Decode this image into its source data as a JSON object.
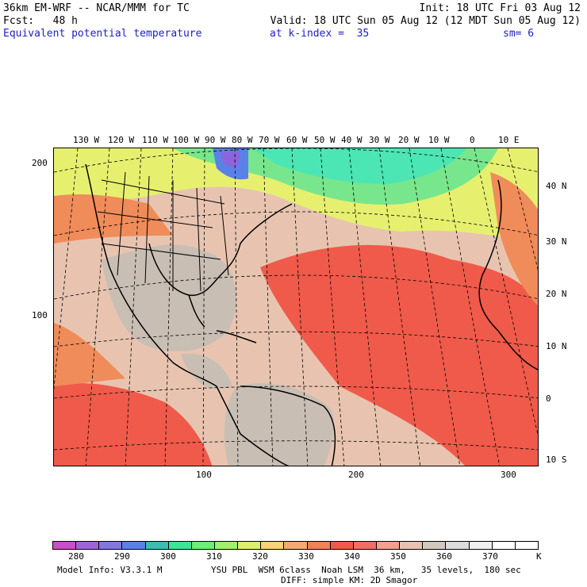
{
  "header": {
    "line1_left": "36km EM-WRF -- NCAR/MMM for TC",
    "line1_right": "Init: 18 UTC Fri 03 Aug 12",
    "line2_left": "Fcst:   48 h",
    "line2_right": "Valid: 18 UTC Sun 05 Aug 12 (12 MDT Sun 05 Aug 12)",
    "field_name": "Equivalent potential temperature",
    "level": "at k-index =  35",
    "smoothing": "sm= 6"
  },
  "map": {
    "top_lon_labels": [
      "130 W",
      "120 W",
      "110 W",
      "100 W",
      "90 W",
      "80 W",
      "70 W",
      "60 W",
      "50 W",
      "40 W",
      "30 W",
      "20 W",
      "10 W",
      "0",
      "10 E"
    ],
    "right_lat_labels": [
      "40 N",
      "30 N",
      "20 N",
      "10 N",
      "0",
      "10 S"
    ],
    "left_grid_labels": [
      "200",
      "100"
    ],
    "bottom_grid_labels": [
      "100",
      "200",
      "300"
    ],
    "colors": {
      "gray": "#c8beb4",
      "salmon": "#e8c4b0",
      "red": "#f05a4a",
      "orange": "#f08c5a",
      "yellow": "#e6f06e",
      "green": "#78e68c",
      "teal": "#4ce6b4",
      "blue": "#5a82e6",
      "purple": "#8c64dc"
    }
  },
  "colorbar": {
    "colors": [
      "#c850c8",
      "#a064d2",
      "#8278dc",
      "#5a82e6",
      "#3cbeb4",
      "#3ce696",
      "#6eee78",
      "#a0f06e",
      "#dcf06e",
      "#fad278",
      "#f5aa6e",
      "#f0825a",
      "#f05a4a",
      "#f06e64",
      "#f4a08c",
      "#e8c4b0",
      "#d2c8be",
      "#dcdcdc",
      "#f0f0f0",
      "#ffffff",
      "#ffffff"
    ],
    "labels": [
      "280",
      "290",
      "300",
      "310",
      "320",
      "330",
      "340",
      "350",
      "360",
      "370"
    ],
    "unit": "K"
  },
  "footer": {
    "model_info": "Model Info: V3.3.1 M",
    "physics": "YSU PBL  WSM 6class  Noah LSM  36 km,   35 levels,  180 sec",
    "diffusion": "DIFF: simple KM: 2D Smagor"
  }
}
